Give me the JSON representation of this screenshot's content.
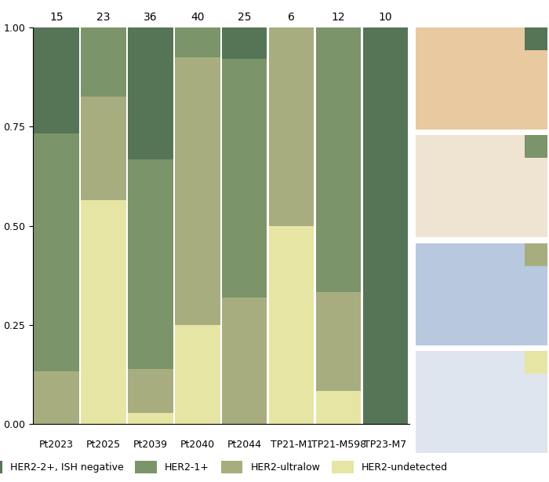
{
  "chart_data": {
    "type": "bar",
    "stacked": true,
    "categories": [
      "Pt2023",
      "Pt2025",
      "Pt2039",
      "Pt2040",
      "Pt2044",
      "TP21-M1",
      "TP21-M598",
      "TP23-M7"
    ],
    "totals": [
      15,
      23,
      36,
      40,
      25,
      6,
      12,
      10
    ],
    "series": [
      {
        "name": "HER2-2+, ISH negative",
        "color": "#557556",
        "values": [
          0.267,
          0,
          0.333,
          0,
          0.08,
          0,
          0,
          1.0
        ]
      },
      {
        "name": "HER2-1+",
        "color": "#7b9469",
        "values": [
          0.6,
          0.174,
          0.528,
          0.075,
          0.6,
          0,
          0.667,
          0
        ]
      },
      {
        "name": "HER2-ultralow",
        "color": "#a8ad7f",
        "values": [
          0.133,
          0.261,
          0.111,
          0.675,
          0.32,
          0.5,
          0.25,
          0
        ]
      },
      {
        "name": "HER2-undetected",
        "color": "#e6e5a3",
        "values": [
          0,
          0.565,
          0.028,
          0.25,
          0,
          0.5,
          0.083,
          0
        ]
      }
    ],
    "ylim": [
      0,
      1
    ],
    "yticks": [
      {
        "value": 0,
        "label": "0.00"
      },
      {
        "value": 0.25,
        "label": "0.25"
      },
      {
        "value": 0.5,
        "label": "0.50"
      },
      {
        "value": 0.75,
        "label": "0.75"
      },
      {
        "value": 1,
        "label": "1.00"
      }
    ],
    "legend": "bottom",
    "grid": false
  }
}
